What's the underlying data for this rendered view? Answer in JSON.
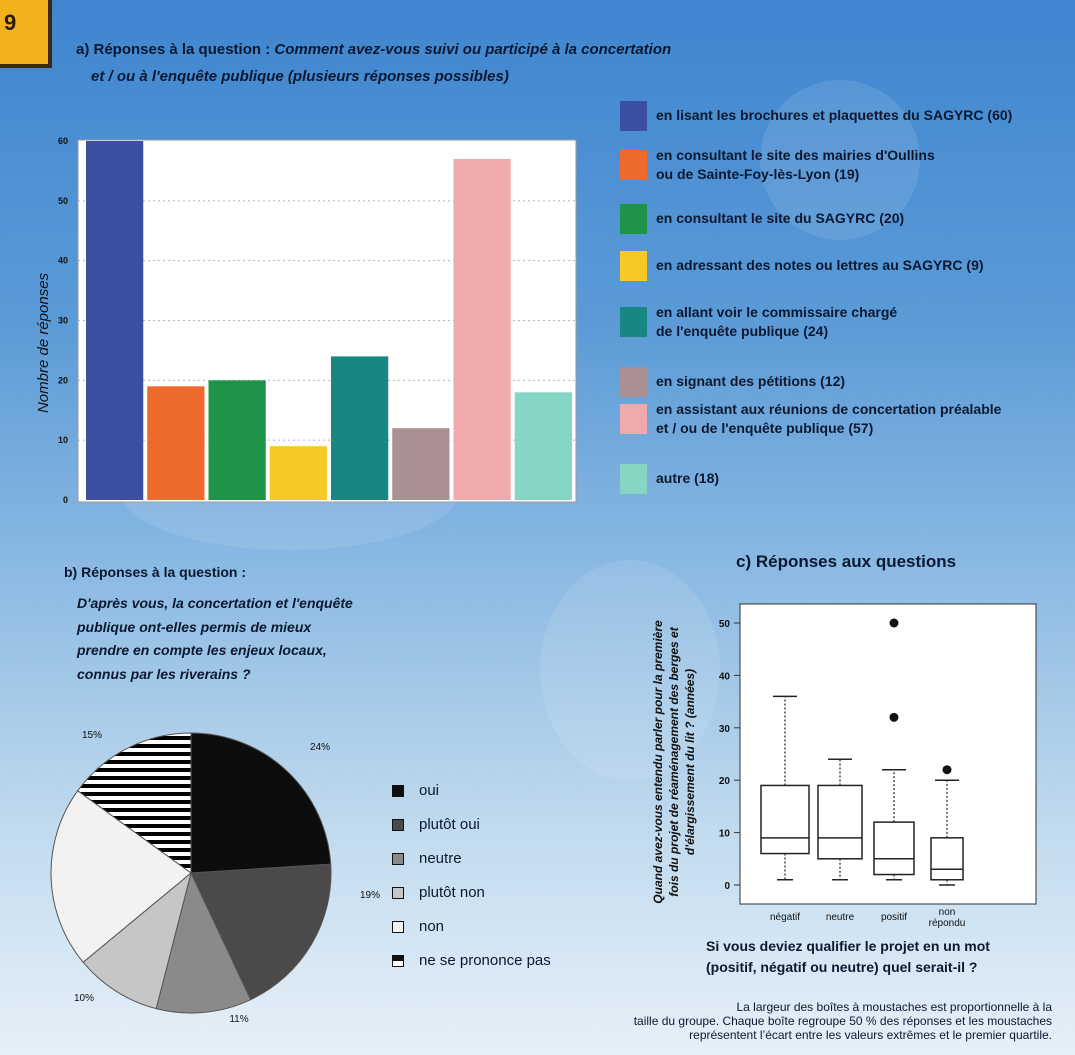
{
  "page_number": "9",
  "section_a": {
    "prefix": "a) Réponses à la question : ",
    "question_line1": "Comment avez-vous suivi ou participé à la concertation",
    "question_line2": "et / ou à l'enquête publique (plusieurs réponses possibles)"
  },
  "section_b": {
    "title": "b) Réponses à la question :",
    "question_lines": [
      "D'après vous, la concertation et l'enquête",
      "publique ont-elles permis de mieux",
      "prendre en compte les enjeux locaux,",
      "connus par les riverains ?"
    ]
  },
  "section_c": {
    "title": "c) Réponses aux questions",
    "question_line1": "Si vous deviez qualifier le projet en un mot",
    "question_line2": "(positif, négatif ou neutre) quel serait-il ?",
    "note_lines": [
      "La largeur des boîtes à moustaches est proportionnelle à la",
      "taille du groupe. Chaque boîte regroupe 50 % des réponses et les moustaches",
      "représentent l’écart entre les valeurs extrêmes et le premier quartile."
    ]
  },
  "chart_data": [
    {
      "type": "bar",
      "ylabel": "Nombre de réponses",
      "ylim": [
        0,
        60
      ],
      "yticks": [
        "0",
        "10",
        "20",
        "30",
        "40",
        "50",
        "60"
      ],
      "grid": true,
      "legend_position": "right",
      "categories": [
        "en lisant les brochures et plaquettes du SAGYRC (60)",
        "en consultant le site des mairies d'Oullins\nou de Sainte-Foy-lès-Lyon (19)",
        "en consultant le site du SAGYRC (20)",
        "en adressant des notes ou lettres au SAGYRC (9)",
        "en allant voir le commissaire chargé\nde l'enquête publique (24)",
        "en signant des pétitions (12)",
        "en assistant aux réunions de concertation préalable\net / ou de l'enquête publique (57)",
        "autre (18)"
      ],
      "values": [
        60,
        19,
        20,
        9,
        24,
        12,
        57,
        18
      ],
      "colors": [
        "#3d4fa3",
        "#ee6a2c",
        "#1f9448",
        "#f8c825",
        "#188783",
        "#a99193",
        "#f0a9ad",
        "#85d6c4"
      ]
    },
    {
      "type": "pie",
      "legend_position": "right",
      "labels": [
        "oui",
        "plutôt oui",
        "neutre",
        "plutôt non",
        "non",
        "ne se prononce pas"
      ],
      "values": [
        24,
        19,
        11,
        10,
        21,
        15
      ],
      "value_labels": [
        "24%",
        "19%",
        "11%",
        "10%",
        "",
        "15%"
      ],
      "colors": [
        "#0d0d0d",
        "#4a4a4a",
        "#8a8a8a",
        "#c6c6c6",
        "#f2f2f2",
        "#000000"
      ],
      "patterns": [
        "solid",
        "solid",
        "solid",
        "solid",
        "solid",
        "horizontal-stripes"
      ]
    },
    {
      "type": "boxplot",
      "ylabel": "Quand avez-vous entendu parler pour la première fois du projet de réaménagement des berges et d'élargissement du lit ? (années)",
      "ylim": [
        0,
        50
      ],
      "yticks": [
        "0",
        "10",
        "20",
        "30",
        "40",
        "50"
      ],
      "categories": [
        "négatif",
        "neutre",
        "positif",
        "non\nrépondu"
      ],
      "boxes": [
        {
          "min": 1,
          "q1": 6,
          "median": 9,
          "q3": 19,
          "max": 36,
          "outliers": []
        },
        {
          "min": 1,
          "q1": 5,
          "median": 9,
          "q3": 19,
          "max": 24,
          "outliers": []
        },
        {
          "min": 1,
          "q1": 2,
          "median": 5,
          "q3": 12,
          "max": 22,
          "outliers": [
            32,
            50
          ]
        },
        {
          "min": 0,
          "q1": 1,
          "median": 3,
          "q3": 9,
          "max": 20,
          "outliers": [
            22
          ]
        }
      ]
    }
  ]
}
